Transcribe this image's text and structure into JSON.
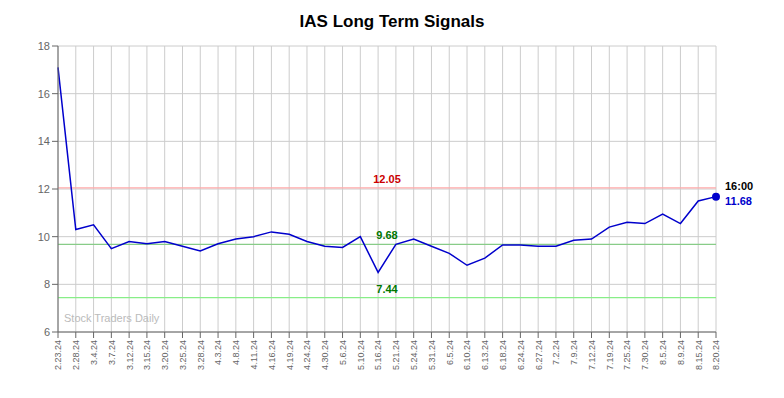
{
  "chart_data": {
    "type": "line",
    "title": "IAS Long Term Signals",
    "categories": [
      "2.23.24",
      "2.28.24",
      "3.4.24",
      "3.7.24",
      "3.12.24",
      "3.15.24",
      "3.20.24",
      "3.25.24",
      "3.28.24",
      "4.3.24",
      "4.8.24",
      "4.11.24",
      "4.16.24",
      "4.19.24",
      "4.24.24",
      "4.30.24",
      "5.6.24",
      "5.10.24",
      "5.16.24",
      "5.21.24",
      "5.24.24",
      "5.31.24",
      "6.5.24",
      "6.10.24",
      "6.13.24",
      "6.18.24",
      "6.24.24",
      "6.27.24",
      "7.2.24",
      "7.9.24",
      "7.12.24",
      "7.19.24",
      "7.25.24",
      "7.30.24",
      "8.5.24",
      "8.9.24",
      "8.15.24",
      "8.20.24"
    ],
    "values": [
      17.1,
      10.3,
      10.5,
      9.5,
      9.8,
      9.7,
      9.8,
      9.6,
      9.4,
      9.7,
      9.9,
      10.0,
      10.2,
      10.1,
      9.8,
      9.6,
      9.55,
      10.0,
      8.5,
      9.68,
      9.9,
      9.6,
      9.3,
      8.8,
      9.1,
      9.65,
      9.65,
      9.6,
      9.6,
      9.85,
      9.9,
      10.4,
      10.6,
      10.55,
      10.95,
      10.55,
      11.5,
      11.68
    ],
    "color": "#0000cc",
    "ylim": [
      6,
      18
    ],
    "yticks": [
      6,
      8,
      10,
      12,
      14,
      16,
      18
    ],
    "grid": true,
    "reference_lines": [
      {
        "value": 12.05,
        "label": "12.05",
        "color": "#ffaaaa",
        "label_color": "#cc0000"
      },
      {
        "value": 9.68,
        "label": "9.68",
        "color": "#88cc88",
        "label_color": "#007700"
      },
      {
        "value": 7.44,
        "label": "7.44",
        "color": "#88ee88",
        "label_color": "#007700"
      }
    ],
    "annotations": [
      {
        "text": "16:00",
        "at": "8.20.24"
      },
      {
        "text": "11.68",
        "at": "8.20.24",
        "color": "#0000cc"
      }
    ],
    "watermark": "Stock Traders Daily"
  }
}
